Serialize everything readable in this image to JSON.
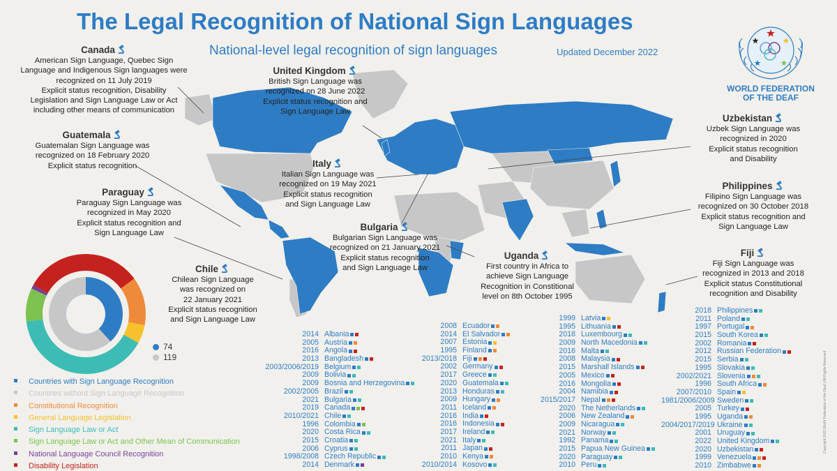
{
  "header": {
    "title": "The Legal Recognition of National Sign Languages",
    "subtitle": "National-level legal recognition of sign languages",
    "updated": "Updated December 2022",
    "org_line1": "WORLD FEDERATION",
    "org_line2": "OF THE DEAF"
  },
  "colors": {
    "blue": "#2e7cc4",
    "gray": "#c7c7c7",
    "orange": "#ee8a3a",
    "yellow": "#f5c12c",
    "teal": "#3dbcb5",
    "green": "#7dc24e",
    "purple": "#7a3e9d",
    "red": "#c4221f"
  },
  "callouts": {
    "canada": {
      "name": "Canada",
      "lines": [
        "American Sign Language, Quebec Sign",
        "Language and Indigenous Sign languages were",
        "recognized on 11 July 2019",
        "Explicit status recognition, Disability",
        "Legislation and Sign Language Law or Act",
        "including other means of communication"
      ]
    },
    "guatemala": {
      "name": "Guatemala",
      "lines": [
        "Guatemalan Sign Language was",
        "recognized on 18 February 2020",
        "Explicit status recognition"
      ]
    },
    "paraguay": {
      "name": "Paraguay",
      "lines": [
        "Paraguay Sign Language was",
        "recognized in May 2020",
        "Explicit status recognition and",
        "Sign Language Law"
      ]
    },
    "chile": {
      "name": "Chile",
      "lines": [
        "Chilean Sign Language",
        "was recognized on",
        "22 January 2021",
        "Explicit status recognition",
        "and Sign Language Law"
      ]
    },
    "uk": {
      "name": "United Kingdom",
      "lines": [
        "British Sign Language was",
        "recognized on 28 June 2022",
        "Explicit status recognition and",
        "Sign Language Law"
      ]
    },
    "italy": {
      "name": "Italy",
      "lines": [
        "Italian Sign Language was",
        "recognized on 19 May 2021",
        "Explicit status recognition",
        "and Sign Language Law"
      ]
    },
    "bulgaria": {
      "name": "Bulgaria",
      "lines": [
        "Bulgarian Sign Language was",
        "recognized on 21 January 2021",
        "Explicit status recognition",
        "and Sign Language Law"
      ]
    },
    "uganda": {
      "name": "Uganda",
      "lines": [
        "First country in Africa to",
        "achieve Sign Language",
        "Recognition in Constitional",
        "level on 8th October 1995"
      ]
    },
    "uzbekistan": {
      "name": "Uzbekistan",
      "lines": [
        "Uzbek Sign Language was",
        "recognized in 2020",
        "Explicit status recognition",
        "and Disability"
      ]
    },
    "philippines": {
      "name": "Philippines",
      "lines": [
        "Filipino Sign Language was",
        "recognized on 30 October 2018",
        "Explicit status recognition and",
        "Sign Language Law"
      ]
    },
    "fiji": {
      "name": "Fiji",
      "lines": [
        "Fiji Sign Language was",
        "recognized in 2013 and 2018",
        "Explicit status Constitutional",
        "recognition and Disability"
      ]
    }
  },
  "counts": {
    "with": "74",
    "without": "119"
  },
  "donut": {
    "inner": [
      {
        "label": "with",
        "value": 74,
        "color": "blue"
      },
      {
        "label": "without",
        "value": 119,
        "color": "gray"
      }
    ],
    "outer": [
      {
        "color": "red",
        "value": 15
      },
      {
        "color": "orange",
        "value": 13
      },
      {
        "color": "yellow",
        "value": 5
      },
      {
        "color": "teal",
        "value": 40
      },
      {
        "color": "green",
        "value": 9
      },
      {
        "color": "purple",
        "value": 1
      },
      {
        "color": "red",
        "value": 17
      }
    ]
  },
  "legend": [
    {
      "label": "Countries with Sign Language Recognition",
      "color": "blue"
    },
    {
      "label": "Countries without Sign Language Recognition",
      "color": "gray"
    },
    {
      "label": "Constitutional Recognition",
      "color": "orange"
    },
    {
      "label": "General Language Legislation",
      "color": "yellow"
    },
    {
      "label": "Sign Language Law or Act",
      "color": "teal"
    },
    {
      "label": "Sign Language Law or Act and Other Mean of Communication",
      "color": "green"
    },
    {
      "label": "National Language Council Recognition",
      "color": "purple"
    },
    {
      "label": "Disability Legislation",
      "color": "red"
    }
  ],
  "columns": [
    [
      {
        "y": "2014",
        "c": "Albania",
        "m": [
          "blue",
          "red"
        ]
      },
      {
        "y": "2005",
        "c": "Austria",
        "m": [
          "blue",
          "orange"
        ]
      },
      {
        "y": "2016",
        "c": "Angola",
        "m": [
          "blue",
          "red"
        ]
      },
      {
        "y": "2013",
        "c": "Bangladesh",
        "m": [
          "blue",
          "red"
        ]
      },
      {
        "y": "2003/2006/2019",
        "c": "Belgium",
        "m": [
          "blue",
          "teal"
        ]
      },
      {
        "y": "2009",
        "c": "Bolivia",
        "m": [
          "blue",
          "teal"
        ]
      },
      {
        "y": "2009",
        "c": "Bosnia and Herzegovina",
        "m": [
          "blue",
          "teal"
        ]
      },
      {
        "y": "2002/2005",
        "c": "Brazil",
        "m": [
          "blue",
          "teal"
        ]
      },
      {
        "y": "2021",
        "c": "Bulgaria",
        "m": [
          "blue",
          "teal"
        ]
      },
      {
        "y": "2019",
        "c": "Canada",
        "m": [
          "blue",
          "green",
          "red"
        ]
      },
      {
        "y": "2010/2021",
        "c": "Chile",
        "m": [
          "blue",
          "teal"
        ]
      },
      {
        "y": "1996",
        "c": "Colombia",
        "m": [
          "blue",
          "green"
        ]
      },
      {
        "y": "2020",
        "c": "Costa Rica",
        "m": [
          "blue",
          "teal"
        ]
      },
      {
        "y": "2015",
        "c": "Croatia",
        "m": [
          "blue",
          "teal"
        ]
      },
      {
        "y": "2006",
        "c": "Cyprus",
        "m": [
          "blue",
          "teal"
        ]
      },
      {
        "y": "1998/2008",
        "c": "Czech Republic",
        "m": [
          "blue",
          "teal"
        ]
      },
      {
        "y": "2014",
        "c": "Denmark",
        "m": [
          "blue",
          "purple"
        ]
      }
    ],
    [
      {
        "y": "2008",
        "c": "Ecuador",
        "m": [
          "blue",
          "orange"
        ]
      },
      {
        "y": "2014",
        "c": "El Salvador",
        "m": [
          "blue",
          "orange"
        ]
      },
      {
        "y": "2007",
        "c": "Estonia",
        "m": [
          "blue",
          "yellow"
        ]
      },
      {
        "y": "1995",
        "c": "Finland",
        "m": [
          "blue",
          "orange"
        ]
      },
      {
        "y": "2013/2018",
        "c": "Fiji",
        "m": [
          "blue",
          "orange",
          "red"
        ]
      },
      {
        "y": "2002",
        "c": "Germany",
        "m": [
          "blue",
          "red"
        ]
      },
      {
        "y": "2017",
        "c": "Greece",
        "m": [
          "blue",
          "teal"
        ]
      },
      {
        "y": "2020",
        "c": "Guatemala",
        "m": [
          "blue",
          "teal"
        ]
      },
      {
        "y": "2013",
        "c": "Honduras",
        "m": [
          "blue",
          "teal"
        ]
      },
      {
        "y": "2009",
        "c": "Hungary",
        "m": [
          "blue",
          "orange"
        ]
      },
      {
        "y": "2011",
        "c": "Iceland",
        "m": [
          "blue",
          "orange"
        ]
      },
      {
        "y": "2016",
        "c": "India",
        "m": [
          "blue",
          "red"
        ]
      },
      {
        "y": "2016",
        "c": "Indonesia",
        "m": [
          "blue",
          "red"
        ]
      },
      {
        "y": "2017",
        "c": "Ireland",
        "m": [
          "blue",
          "teal"
        ]
      },
      {
        "y": "2021",
        "c": "Italy",
        "m": [
          "blue",
          "teal"
        ]
      },
      {
        "y": "2011",
        "c": "Japan",
        "m": [
          "blue",
          "red"
        ]
      },
      {
        "y": "2010",
        "c": "Kenya",
        "m": [
          "blue",
          "orange"
        ]
      },
      {
        "y": "2010/2014",
        "c": "Kosovo",
        "m": [
          "blue",
          "teal"
        ]
      }
    ],
    [
      {
        "y": "1999",
        "c": "Latvia",
        "m": [
          "blue",
          "yellow"
        ]
      },
      {
        "y": "1995",
        "c": "Lithuania",
        "m": [
          "blue",
          "red"
        ]
      },
      {
        "y": "2018",
        "c": "Luxembourg",
        "m": [
          "blue",
          "teal"
        ]
      },
      {
        "y": "2009",
        "c": "North Macedonia",
        "m": [
          "blue",
          "teal"
        ]
      },
      {
        "y": "2016",
        "c": "Malta",
        "m": [
          "blue",
          "teal"
        ]
      },
      {
        "y": "2008",
        "c": "Malaysia",
        "m": [
          "blue",
          "red"
        ]
      },
      {
        "y": "2015",
        "c": "Marshall Islands",
        "m": [
          "blue",
          "red"
        ]
      },
      {
        "y": "2005",
        "c": "Mexico",
        "m": [
          "blue",
          "red"
        ]
      },
      {
        "y": "2016",
        "c": "Mongolia",
        "m": [
          "blue",
          "red"
        ]
      },
      {
        "y": "2004",
        "c": "Namibia",
        "m": [
          "blue",
          "red"
        ]
      },
      {
        "y": "2015/2017",
        "c": "Nepal",
        "m": [
          "blue",
          "orange",
          "red"
        ]
      },
      {
        "y": "2020",
        "c": "The Netherlands",
        "m": [
          "blue",
          "teal"
        ]
      },
      {
        "y": "2006",
        "c": "New Zealand",
        "m": [
          "blue",
          "orange"
        ]
      },
      {
        "y": "2009",
        "c": "Nicaragua",
        "m": [
          "blue",
          "teal"
        ]
      },
      {
        "y": "2021",
        "c": "Norway",
        "m": [
          "blue",
          "teal"
        ]
      },
      {
        "y": "1992",
        "c": "Panama",
        "m": [
          "blue",
          "teal"
        ]
      },
      {
        "y": "2015",
        "c": "Papua New Guinea",
        "m": [
          "blue",
          "teal"
        ]
      },
      {
        "y": "2020",
        "c": "Paraguay",
        "m": [
          "blue",
          "teal"
        ]
      },
      {
        "y": "2010",
        "c": "Peru",
        "m": [
          "blue",
          "teal"
        ]
      }
    ],
    [
      {
        "y": "2018",
        "c": "Philippines",
        "m": [
          "blue",
          "teal"
        ]
      },
      {
        "y": "2011",
        "c": "Poland",
        "m": [
          "blue",
          "teal"
        ]
      },
      {
        "y": "1997",
        "c": "Portugal",
        "m": [
          "blue",
          "orange"
        ]
      },
      {
        "y": "2015",
        "c": "South Korea",
        "m": [
          "blue",
          "teal"
        ]
      },
      {
        "y": "2002",
        "c": "Romania",
        "m": [
          "blue",
          "red"
        ]
      },
      {
        "y": "2012",
        "c": "Russian Federation",
        "m": [
          "blue",
          "red"
        ]
      },
      {
        "y": "2015",
        "c": "Serbia",
        "m": [
          "blue",
          "teal"
        ]
      },
      {
        "y": "1995",
        "c": "Slovakia",
        "m": [
          "blue",
          "teal"
        ]
      },
      {
        "y": "2002/2021",
        "c": "Slovenia",
        "m": [
          "blue",
          "orange",
          "teal"
        ]
      },
      {
        "y": "1996",
        "c": "South Africa",
        "m": [
          "blue",
          "orange"
        ]
      },
      {
        "y": "2007/2010",
        "c": "Spain",
        "m": [
          "blue",
          "yellow"
        ]
      },
      {
        "y": "1981/2006/2009",
        "c": "Sweden",
        "m": [
          "blue",
          "teal"
        ]
      },
      {
        "y": "2005",
        "c": "Turkey",
        "m": [
          "blue",
          "red"
        ]
      },
      {
        "y": "1995",
        "c": "Uganda",
        "m": [
          "blue",
          "orange"
        ]
      },
      {
        "y": "2004/2017/2019",
        "c": "Ukraine",
        "m": [
          "blue",
          "teal"
        ]
      },
      {
        "y": "2001",
        "c": "Uruguay",
        "m": [
          "blue",
          "teal"
        ]
      },
      {
        "y": "2022",
        "c": "United Kingdom",
        "m": [
          "blue",
          "teal"
        ]
      },
      {
        "y": "2020",
        "c": "Uzbekistan",
        "m": [
          "blue",
          "red"
        ]
      },
      {
        "y": "1999",
        "c": "Venezuela",
        "m": [
          "blue",
          "orange",
          "red"
        ]
      },
      {
        "y": "2010",
        "c": "Zimbabwe",
        "m": [
          "blue",
          "orange"
        ]
      }
    ]
  ],
  "copyright": "Copyright 2022 World Federation of the Deaf | All Rights Reserved"
}
